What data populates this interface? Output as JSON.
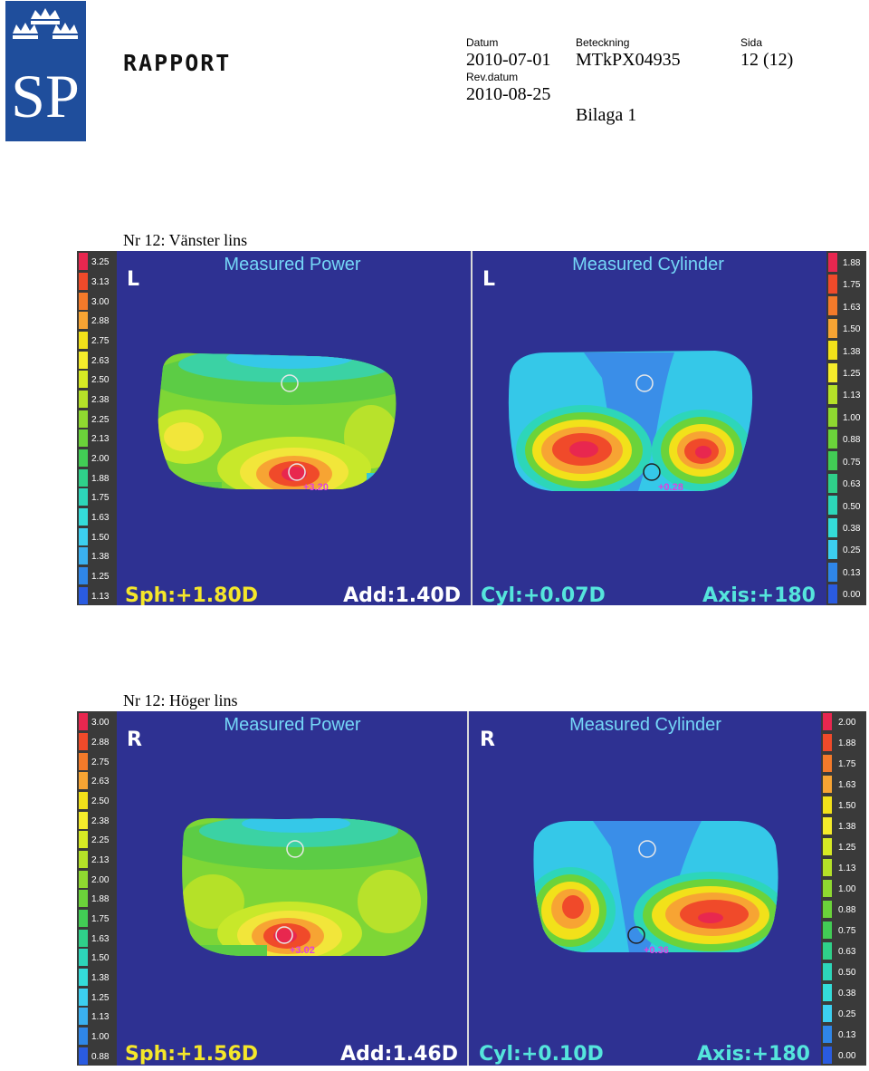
{
  "header": {
    "logo_text": "SP",
    "report_title": "RAPPORT",
    "datum_label": "Datum",
    "datum_value": "2010-07-01",
    "rev_label": "Rev.datum",
    "rev_value": "2010-08-25",
    "beteckning_label": "Beteckning",
    "beteckning_value": "MTkPX04935",
    "bilaga": "Bilaga 1",
    "sida_label": "Sida",
    "sida_value": "12 (12)"
  },
  "colors": {
    "background": "#2e3192",
    "scale_bar": "#3a3a3a",
    "sph_add_text": "#f5e72a",
    "cyl_axis_text": "#55e5dc",
    "marker_text": "#e040e0"
  },
  "sections": [
    {
      "title": "Nr 12: Vänster lins",
      "power_scale": [
        "3.25",
        "3.13",
        "3.00",
        "2.88",
        "2.75",
        "2.63",
        "2.50",
        "2.38",
        "2.25",
        "2.13",
        "2.00",
        "1.88",
        "1.75",
        "1.63",
        "1.50",
        "1.38",
        "1.25",
        "1.13"
      ],
      "cylinder_scale": [
        "1.88",
        "1.75",
        "1.63",
        "1.50",
        "1.38",
        "1.25",
        "1.13",
        "1.00",
        "0.88",
        "0.75",
        "0.63",
        "0.50",
        "0.38",
        "0.25",
        "0.13",
        "0.00"
      ],
      "power": {
        "side": "L",
        "title": "Measured Power",
        "marker": "+3.20",
        "sph": "Sph:+1.80D",
        "add": "Add:1.40D"
      },
      "cylinder": {
        "side": "L",
        "title": "Measured Cylinder",
        "marker": "+0.28",
        "cyl": "Cyl:+0.07D",
        "axis": "Axis:+180"
      }
    },
    {
      "title": "Nr 12: Höger lins",
      "power_scale": [
        "3.00",
        "2.88",
        "2.75",
        "2.63",
        "2.50",
        "2.38",
        "2.25",
        "2.13",
        "2.00",
        "1.88",
        "1.75",
        "1.63",
        "1.50",
        "1.38",
        "1.25",
        "1.13",
        "1.00",
        "0.88"
      ],
      "cylinder_scale": [
        "2.00",
        "1.88",
        "1.75",
        "1.63",
        "1.50",
        "1.38",
        "1.25",
        "1.13",
        "1.00",
        "0.88",
        "0.75",
        "0.63",
        "0.50",
        "0.38",
        "0.25",
        "0.13",
        "0.00"
      ],
      "power": {
        "side": "R",
        "title": "Measured Power",
        "marker": "+3.02",
        "sph": "Sph:+1.56D",
        "add": "Add:1.46D"
      },
      "cylinder": {
        "side": "R",
        "title": "Measured Cylinder",
        "marker": "+0.36",
        "cyl": "Cyl:+0.10D",
        "axis": "Axis:+180"
      }
    }
  ]
}
